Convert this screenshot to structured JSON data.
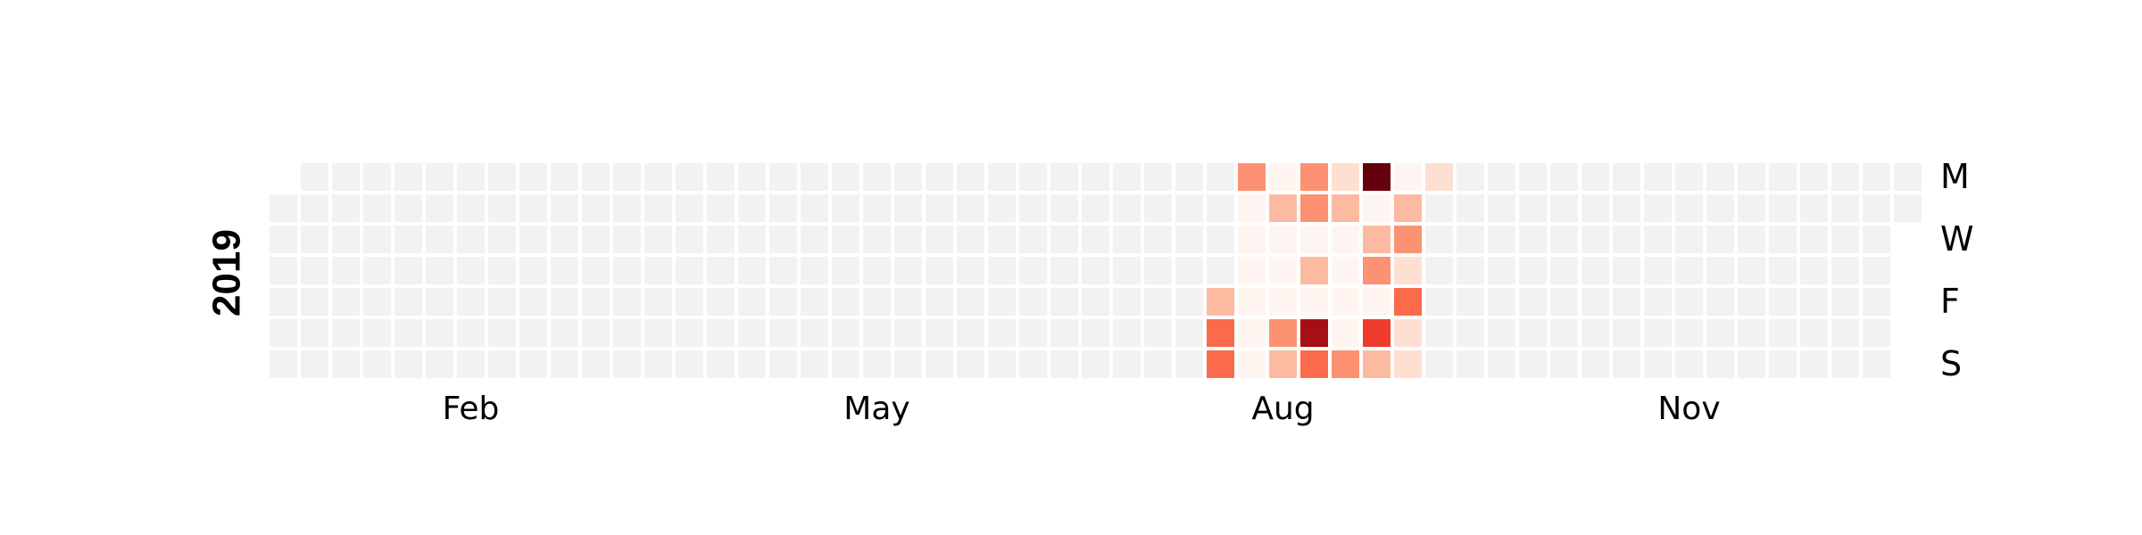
{
  "chart_data": {
    "type": "heatmap",
    "year": "2019",
    "start_date": "2019-01-01",
    "week_start": "Monday",
    "day_labels": [
      {
        "row": 0,
        "text": "M"
      },
      {
        "row": 2,
        "text": "W"
      },
      {
        "row": 4,
        "text": "F"
      },
      {
        "row": 6,
        "text": "S"
      }
    ],
    "month_labels": [
      {
        "week": 6,
        "text": "Feb"
      },
      {
        "week": 19,
        "text": "May"
      },
      {
        "week": 32,
        "text": "Aug"
      },
      {
        "week": 45,
        "text": "Nov"
      }
    ],
    "empty_color": "#f2f2f2",
    "colorscale": [
      "#fff5f0",
      "#fee0d2",
      "#fcbba1",
      "#fc9272",
      "#fb6a4a",
      "#ef3b2c",
      "#cb181d",
      "#a50f15",
      "#67000d"
    ],
    "value_range": [
      0,
      8
    ],
    "active_weeks": [
      {
        "week": 30,
        "days": [
          null,
          null,
          null,
          null,
          2,
          4,
          4
        ]
      },
      {
        "week": 31,
        "days": [
          3,
          0,
          0,
          0,
          0,
          0,
          0
        ]
      },
      {
        "week": 32,
        "days": [
          0,
          2,
          0,
          0,
          0,
          3,
          2
        ]
      },
      {
        "week": 33,
        "days": [
          3,
          3,
          0,
          2,
          0,
          7,
          4
        ]
      },
      {
        "week": 34,
        "days": [
          1,
          2,
          0,
          0,
          0,
          0,
          3
        ]
      },
      {
        "week": 35,
        "days": [
          8,
          0,
          2,
          3,
          0,
          5,
          2
        ]
      },
      {
        "week": 36,
        "days": [
          0,
          2,
          3,
          1,
          4,
          1,
          1
        ]
      },
      {
        "week": 37,
        "days": [
          1,
          null,
          null,
          null,
          null,
          null,
          null
        ]
      }
    ]
  }
}
